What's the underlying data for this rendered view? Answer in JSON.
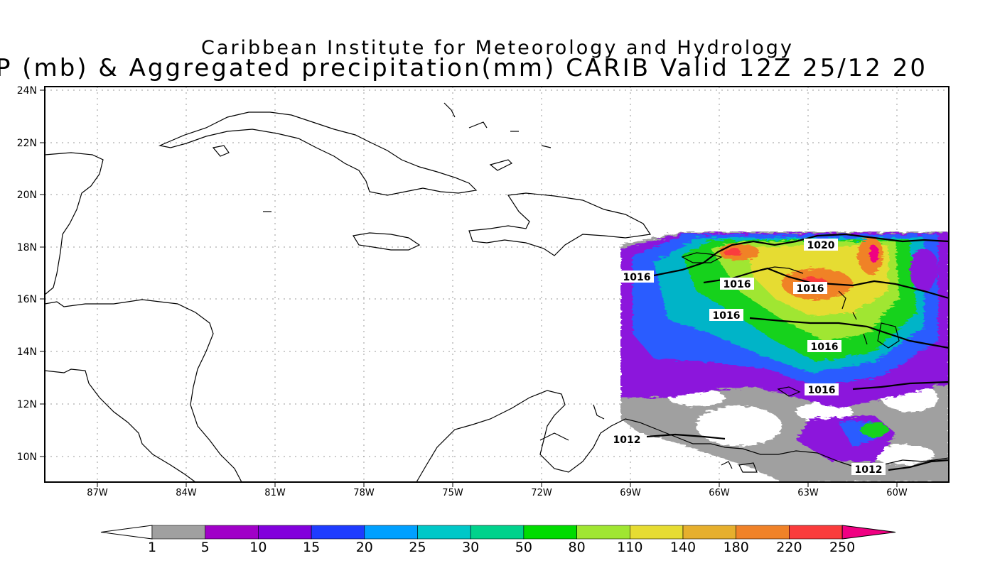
{
  "title_line1": "Caribbean Institute for Meteorology and Hydrology",
  "title_line2": "P (mb) & Aggregated precipitation(mm) CARIB Valid 12Z 25/12 20",
  "map": {
    "lat_labels": [
      "24N",
      "22N",
      "20N",
      "18N",
      "16N",
      "14N",
      "12N",
      "10N"
    ],
    "lon_labels": [
      "87W",
      "84W",
      "81W",
      "78W",
      "75W",
      "72W",
      "69W",
      "66W",
      "63W",
      "60W"
    ],
    "isobar_labels": [
      "1020",
      "1016",
      "1016",
      "1016",
      "1016",
      "1016",
      "1016",
      "1012",
      "1012"
    ]
  },
  "colorbar": {
    "ticks": [
      "1",
      "5",
      "10",
      "15",
      "20",
      "25",
      "30",
      "50",
      "80",
      "110",
      "140",
      "180",
      "220",
      "250"
    ],
    "colors": [
      "#ffffff",
      "#a0a0a0",
      "#a000c8",
      "#8200dc",
      "#1e3cff",
      "#00a0ff",
      "#00c8c8",
      "#00d28c",
      "#00dc00",
      "#a0e632",
      "#e6dc32",
      "#e6af2d",
      "#f08228",
      "#fa3c3c",
      "#f00082"
    ]
  }
}
